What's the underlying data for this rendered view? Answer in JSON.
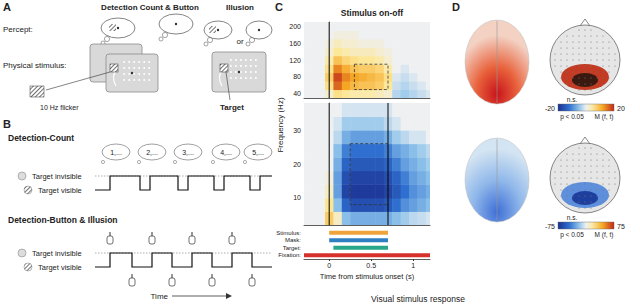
{
  "panel_A": {
    "label": "A",
    "headers": [
      "Detection Count & Button",
      "Illusion"
    ],
    "percept": "Percept:",
    "physical": "Physical stimulus:",
    "flicker": "10 Hz flicker",
    "or": "or",
    "target": "Target"
  },
  "panel_B": {
    "label": "B",
    "count_title": "Detection-Count",
    "counts": [
      "1,...",
      "2,...",
      "3,...",
      "4,...",
      "5,..."
    ],
    "invisible": "Target invisible",
    "visible": "Target visible",
    "button_title": "Detection-Button & Illusion",
    "time": "Time"
  },
  "panel_C": {
    "label": "C"
  },
  "chart_data": [
    {
      "type": "heatmap",
      "title": "Stimulus on-off",
      "ylabel": "Frequency (Hz)",
      "x": [
        -0.3,
        -0.2,
        -0.1,
        0,
        0.1,
        0.2,
        0.3,
        0.4,
        0.5,
        0.6,
        0.7,
        0.8,
        0.9,
        1.0,
        1.1,
        1.2
      ],
      "y": [
        40,
        60,
        80,
        100,
        120,
        140,
        160,
        180,
        200
      ],
      "cells": [
        [
          0,
          0,
          0,
          2,
          6,
          5,
          4,
          4,
          4,
          3,
          2,
          -3,
          -4,
          -3,
          -2,
          -1
        ],
        [
          0,
          0,
          0,
          6,
          16,
          12,
          10,
          9,
          9,
          8,
          5,
          -2,
          -3,
          -2,
          -1,
          0
        ],
        [
          0,
          0,
          0,
          8,
          18,
          14,
          12,
          11,
          10,
          9,
          6,
          -1,
          -2,
          -1,
          0,
          0
        ],
        [
          0,
          0,
          0,
          6,
          14,
          11,
          9,
          8,
          8,
          7,
          4,
          0,
          -1,
          0,
          0,
          0
        ],
        [
          0,
          0,
          0,
          4,
          9,
          7,
          6,
          5,
          5,
          4,
          2,
          0,
          0,
          0,
          0,
          0
        ],
        [
          0,
          0,
          0,
          2,
          5,
          4,
          3,
          3,
          3,
          2,
          1,
          0,
          0,
          0,
          0,
          0
        ],
        [
          0,
          0,
          0,
          1,
          3,
          2,
          2,
          1,
          1,
          1,
          0,
          0,
          0,
          0,
          0,
          0
        ],
        [
          0,
          0,
          0,
          0,
          1,
          1,
          1,
          0,
          0,
          0,
          0,
          0,
          0,
          0,
          0,
          0
        ],
        [
          0,
          0,
          0,
          0,
          0,
          0,
          0,
          0,
          0,
          0,
          0,
          0,
          0,
          0,
          0,
          0
        ]
      ],
      "color_range": [
        -20,
        20
      ],
      "xlim": [
        -0.3,
        1.2
      ],
      "ylim": [
        30,
        210
      ],
      "xticks": [
        0,
        0.5,
        1
      ],
      "yticks": [
        40,
        80,
        120,
        160,
        200
      ],
      "tick_labels": "y",
      "grid": false,
      "vlines": [
        0
      ],
      "boxes": [
        {
          "x": [
            0.3,
            0.7
          ],
          "y": [
            50,
            110
          ]
        }
      ]
    },
    {
      "type": "heatmap",
      "xlabel": "Time from stimulus onset (s)",
      "x": [
        -0.3,
        -0.2,
        -0.1,
        0,
        0.1,
        0.2,
        0.3,
        0.4,
        0.5,
        0.6,
        0.7,
        0.8,
        0.9,
        1.0,
        1.1,
        1.2
      ],
      "y": [
        4,
        8,
        12,
        16,
        20,
        24,
        28,
        32,
        36
      ],
      "cells": [
        [
          0,
          0,
          0,
          30,
          10,
          -20,
          -25,
          -25,
          -25,
          -25,
          -25,
          -20,
          -15,
          -10,
          -8,
          -5
        ],
        [
          0,
          0,
          0,
          20,
          -20,
          -50,
          -60,
          -60,
          -60,
          -60,
          -55,
          -45,
          -35,
          -30,
          -25,
          -20
        ],
        [
          0,
          0,
          0,
          10,
          -30,
          -65,
          -70,
          -70,
          -70,
          -70,
          -65,
          -55,
          -45,
          -35,
          -30,
          -25
        ],
        [
          0,
          0,
          0,
          5,
          -30,
          -60,
          -65,
          -65,
          -65,
          -65,
          -60,
          -50,
          -40,
          -30,
          -25,
          -20
        ],
        [
          0,
          0,
          0,
          0,
          -25,
          -50,
          -55,
          -55,
          -55,
          -55,
          -50,
          -40,
          -30,
          -25,
          -20,
          -15
        ],
        [
          0,
          0,
          0,
          0,
          -20,
          -40,
          -45,
          -45,
          -45,
          -45,
          -40,
          -30,
          -25,
          -20,
          -15,
          -10
        ],
        [
          0,
          0,
          0,
          0,
          -10,
          -25,
          -30,
          -30,
          -30,
          -30,
          -25,
          -15,
          -10,
          -5,
          -5,
          0
        ],
        [
          0,
          0,
          0,
          0,
          -5,
          -15,
          -15,
          -15,
          -15,
          -15,
          -10,
          -5,
          0,
          0,
          0,
          0
        ],
        [
          0,
          0,
          0,
          0,
          0,
          -5,
          -5,
          -5,
          -5,
          -5,
          -5,
          0,
          0,
          0,
          0,
          0
        ]
      ],
      "color_range": [
        -75,
        75
      ],
      "xlim": [
        -0.3,
        1.2
      ],
      "ylim": [
        2,
        38
      ],
      "xticks": [
        0,
        0.5,
        1
      ],
      "yticks": [
        10,
        20,
        30
      ],
      "tick_labels": true,
      "grid": false,
      "vlines": [
        0,
        0.7
      ],
      "boxes": [
        {
          "x": [
            0.25,
            0.7
          ],
          "y": [
            8,
            26
          ]
        }
      ],
      "timeline": [
        {
          "name": "Stimulus:",
          "start": 0,
          "end": 0.7,
          "color": "#f0a33a"
        },
        {
          "name": "Mask:",
          "start": 0,
          "end": 0.7,
          "color": "#2f7fc1"
        },
        {
          "name": "Target:",
          "start": 0.05,
          "end": 0.7,
          "color": "#2aa68a"
        },
        {
          "name": "Fixation:",
          "start": -0.3,
          "end": 1.2,
          "color": "#d6312b"
        }
      ]
    }
  ],
  "panel_D": {
    "label": "D",
    "colorbars": [
      {
        "range": [
          -20,
          20
        ],
        "ns": "n.s.",
        "sig": "p < 0.05",
        "label": "M (f, t)"
      },
      {
        "range": [
          -75,
          75
        ],
        "ns": "n.s.",
        "sig": "p < 0.05",
        "label": "M (f, t)"
      }
    ]
  },
  "caption": "Visual stimulus response"
}
